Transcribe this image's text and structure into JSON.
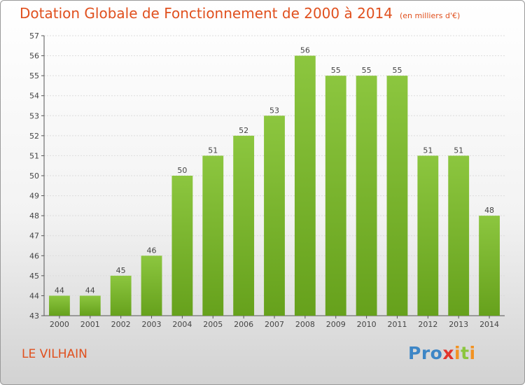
{
  "title": "Dotation Globale de Fonctionnement de 2000 à 2014",
  "unit_note": "(en milliers d'€)",
  "commune": "LE VILHAIN",
  "logo": {
    "letters": [
      "P",
      "r",
      "o",
      "x",
      "i",
      "t",
      "i"
    ],
    "colors": [
      "#3d86c6",
      "#3d86c6",
      "#3d86c6",
      "#e3352c",
      "#f29222",
      "#8cc63f",
      "#f29222"
    ]
  },
  "chart_data": {
    "type": "bar",
    "title": "Dotation Globale de Fonctionnement de 2000 à 2014",
    "xlabel": "",
    "ylabel": "",
    "categories": [
      "2000",
      "2001",
      "2002",
      "2003",
      "2004",
      "2005",
      "2006",
      "2007",
      "2008",
      "2009",
      "2010",
      "2011",
      "2012",
      "2013",
      "2014"
    ],
    "values": [
      44,
      44,
      45,
      46,
      50,
      51,
      52,
      53,
      56,
      55,
      55,
      55,
      51,
      51,
      48
    ],
    "ylim": [
      43,
      57
    ],
    "yticks": [
      43,
      44,
      45,
      46,
      47,
      48,
      49,
      50,
      51,
      52,
      53,
      54,
      55,
      56,
      57
    ],
    "grid": true,
    "bar_color": "#8cc63f",
    "bar_color_dark": "#66a11c"
  }
}
